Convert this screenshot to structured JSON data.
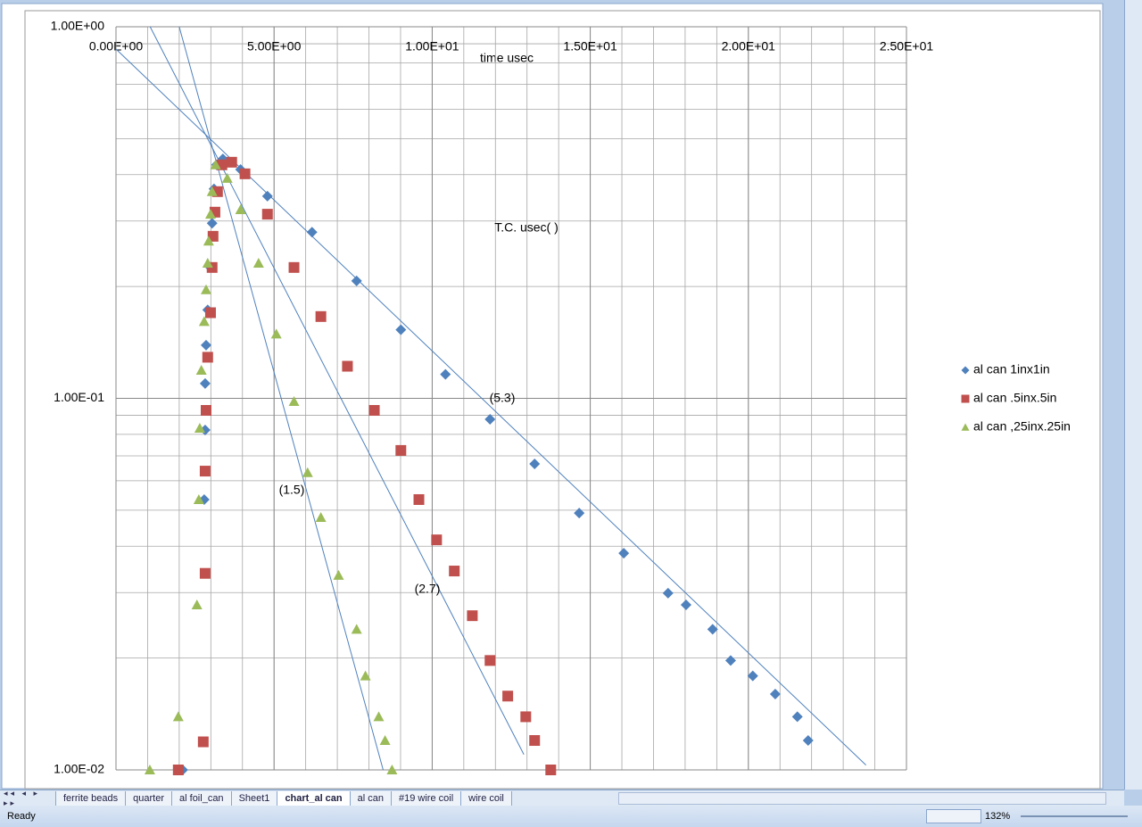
{
  "chart_data": {
    "type": "scatter",
    "x_label": "time usec",
    "annotations": [
      "T.C. usec( )",
      "(5.3)",
      "(1.5)",
      "(2.7)"
    ],
    "xlim": [
      0,
      25
    ],
    "xticks": [
      {
        "value": 0,
        "label": "0.00E+00"
      },
      {
        "value": 5,
        "label": "5.00E+00"
      },
      {
        "value": 10,
        "label": "1.00E+01"
      },
      {
        "value": 15,
        "label": "1.50E+01"
      },
      {
        "value": 20,
        "label": "2.00E+01"
      },
      {
        "value": 25,
        "label": "2.50E+01"
      }
    ],
    "ylim": [
      0.01,
      1
    ],
    "yticks": [
      {
        "value": 0.01,
        "label": "1.00E-02"
      },
      {
        "value": 0.1,
        "label": "1.00E-01"
      },
      {
        "value": 1,
        "label": "1.00E+00"
      }
    ],
    "ylog": true,
    "grid": true,
    "minor_grid": true,
    "legend": "right",
    "series": [
      {
        "name": "al can 1inx1in",
        "color": "#4f81bd",
        "marker": "diamond",
        "x": [
          2.11,
          2.79,
          2.82,
          2.82,
          2.85,
          2.9,
          2.99,
          3.04,
          3.1,
          3.18,
          3.38,
          3.94,
          4.79,
          6.2,
          7.61,
          9.01,
          10.42,
          11.83,
          13.24,
          14.65,
          16.06,
          17.46,
          18.03,
          18.87,
          19.44,
          20.14,
          20.85,
          21.55,
          21.89
        ],
        "values": [
          0.01,
          0.0534,
          0.0822,
          0.1096,
          0.139,
          0.173,
          0.225,
          0.296,
          0.366,
          0.425,
          0.441,
          0.413,
          0.35,
          0.28,
          0.207,
          0.153,
          0.116,
          0.0878,
          0.0666,
          0.0491,
          0.0383,
          0.0299,
          0.0278,
          0.0239,
          0.0197,
          0.0179,
          0.016,
          0.0139,
          0.012
        ]
      },
      {
        "name": "al can .5inx.5in",
        "color": "#c0504d",
        "marker": "square",
        "x": [
          1.97,
          2.76,
          2.82,
          2.82,
          2.85,
          2.9,
          2.99,
          3.04,
          3.07,
          3.13,
          3.21,
          3.35,
          3.66,
          4.08,
          4.79,
          5.63,
          6.48,
          7.32,
          8.17,
          9.01,
          9.58,
          10.14,
          10.7,
          11.27,
          11.83,
          12.39,
          12.96,
          13.24,
          13.75
        ],
        "values": [
          0.01,
          0.0119,
          0.0338,
          0.0637,
          0.0928,
          0.129,
          0.17,
          0.225,
          0.273,
          0.317,
          0.36,
          0.425,
          0.432,
          0.402,
          0.313,
          0.225,
          0.166,
          0.122,
          0.0928,
          0.0724,
          0.0534,
          0.0416,
          0.0343,
          0.026,
          0.0197,
          0.0158,
          0.0139,
          0.012,
          0.01
        ]
      },
      {
        "name": "al can ,25inx.25in",
        "color": "#9bbb59",
        "marker": "triangle",
        "x": [
          1.07,
          1.97,
          2.56,
          2.62,
          2.65,
          2.7,
          2.79,
          2.85,
          2.9,
          2.93,
          2.99,
          3.04,
          3.15,
          3.52,
          3.94,
          4.51,
          5.07,
          5.63,
          6.06,
          6.48,
          7.04,
          7.61,
          7.89,
          8.31,
          8.51,
          8.73
        ],
        "values": [
          0.01,
          0.0139,
          0.0278,
          0.0534,
          0.0831,
          0.119,
          0.161,
          0.196,
          0.231,
          0.265,
          0.313,
          0.36,
          0.425,
          0.391,
          0.322,
          0.231,
          0.149,
          0.0981,
          0.0631,
          0.0478,
          0.0334,
          0.0239,
          0.0179,
          0.0139,
          0.012,
          0.01
        ]
      }
    ],
    "trendline_color": "#4f81bd",
    "trendlines": [
      {
        "x": [
          0,
          23.72
        ],
        "values": [
          0.871,
          0.0103
        ]
      },
      {
        "x": [
          1.08,
          12.9
        ],
        "values": [
          1,
          0.011
        ]
      },
      {
        "x": [
          2,
          8.45
        ],
        "values": [
          1,
          0.01
        ]
      }
    ]
  },
  "sheet_tabs": [
    {
      "label": "ferrite beads",
      "active": false
    },
    {
      "label": "quarter",
      "active": false
    },
    {
      "label": "al foil_can",
      "active": false
    },
    {
      "label": "Sheet1",
      "active": false
    },
    {
      "label": "chart_al can",
      "active": true
    },
    {
      "label": "al can",
      "active": false
    },
    {
      "label": "#19 wire coil",
      "active": false
    },
    {
      "label": "wire coil",
      "active": false
    }
  ],
  "status_bar": {
    "mode": "Ready",
    "zoom": "132%"
  }
}
